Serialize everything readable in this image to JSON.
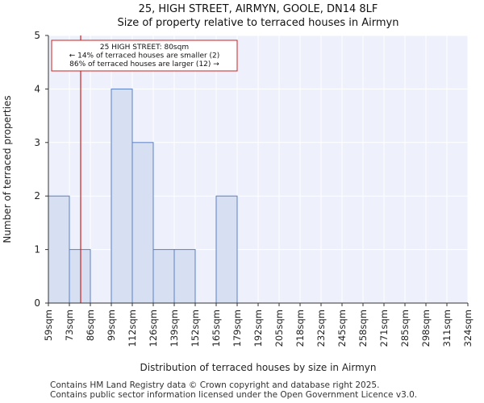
{
  "chart_data": {
    "type": "bar",
    "title_line1": "25, HIGH STREET, AIRMYN, GOOLE, DN14 8LF",
    "title_line2": "Size of property relative to terraced houses in Airmyn",
    "xlabel": "Distribution of terraced houses by size in Airmyn",
    "ylabel": "Number of terraced properties",
    "bin_edges": [
      59,
      73,
      86,
      99,
      112,
      126,
      139,
      152,
      165,
      179,
      192,
      205,
      218,
      232,
      245,
      258,
      271,
      285,
      298,
      311,
      324
    ],
    "tick_labels": [
      "59sqm",
      "73sqm",
      "86sqm",
      "99sqm",
      "112sqm",
      "126sqm",
      "139sqm",
      "152sqm",
      "165sqm",
      "179sqm",
      "192sqm",
      "205sqm",
      "218sqm",
      "232sqm",
      "245sqm",
      "258sqm",
      "271sqm",
      "285sqm",
      "298sqm",
      "311sqm",
      "324sqm"
    ],
    "values": [
      2,
      1,
      0,
      4,
      3,
      1,
      1,
      0,
      2,
      0,
      0,
      0,
      0,
      0,
      0,
      0,
      0,
      0,
      0,
      0
    ],
    "ylim": [
      0,
      5
    ],
    "yticks": [
      0,
      1,
      2,
      3,
      4,
      5
    ],
    "marker_value": 80,
    "annotation": {
      "line1": "25 HIGH STREET: 80sqm",
      "line2": "← 14% of terraced houses are smaller (2)",
      "line3": "86% of terraced houses are larger (12) →"
    },
    "colors": {
      "bar_fill": "#d6e0f2",
      "bar_stroke": "#5b7fc4",
      "plot_bg": "#eef1fb",
      "grid": "#ffffff",
      "marker": "#cc2222"
    }
  },
  "footer": {
    "line1": "Contains HM Land Registry data © Crown copyright and database right 2025.",
    "line2": "Contains public sector information licensed under the Open Government Licence v3.0."
  }
}
